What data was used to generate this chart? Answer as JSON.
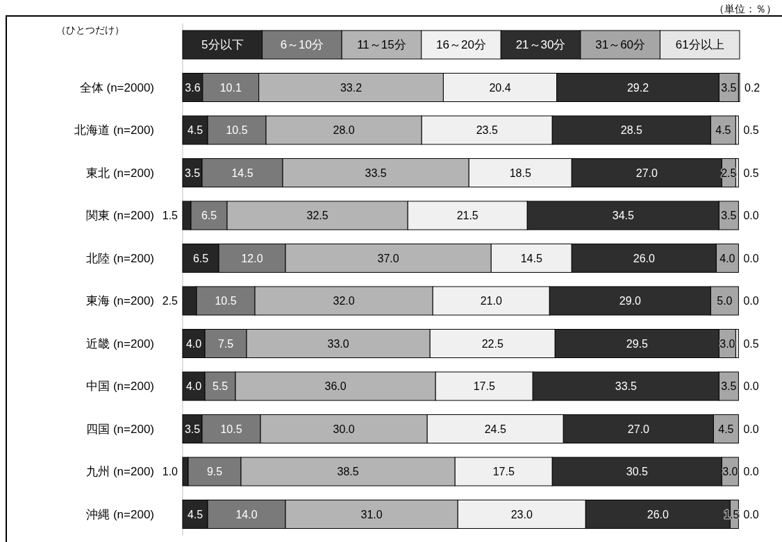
{
  "chart_data": {
    "type": "bar",
    "orientation": "horizontal",
    "stacked": true,
    "legend": "top",
    "tick_labels": "y",
    "xlim": [
      0,
      100.2
    ],
    "categories": [
      "全体 (n=2000)",
      "北海道 (n=200)",
      "東北 (n=200)",
      "関東 (n=200)",
      "北陸 (n=200)",
      "東海 (n=200)",
      "近畿 (n=200)",
      "中国 (n=200)",
      "四国 (n=200)",
      "九州 (n=200)",
      "沖縄 (n=200)"
    ],
    "annotations": [
      "（ひとつだけ）",
      "（単位：％）"
    ],
    "series": [
      {
        "name": "5分以下",
        "color": "#262626",
        "values": [
          3.6,
          4.5,
          3.5,
          1.5,
          6.5,
          2.5,
          4.0,
          4.0,
          3.5,
          1.0,
          4.5
        ],
        "value_labels": [
          "3.6",
          "4.5",
          "3.5",
          "1.5",
          "6.5",
          "2.5",
          "4.0",
          "4.0",
          "3.5",
          "1.0",
          "4.5"
        ]
      },
      {
        "name": "6～10分",
        "color": "#7a7a7a",
        "values": [
          10.1,
          10.5,
          14.5,
          6.5,
          12.0,
          10.5,
          7.5,
          5.5,
          10.5,
          9.5,
          14.0
        ],
        "value_labels": [
          "10.1",
          "10.5",
          "14.5",
          "6.5",
          "12.0",
          "10.5",
          "7.5",
          "5.5",
          "10.5",
          "9.5",
          "14.0"
        ]
      },
      {
        "name": "11～15分",
        "color": "#b4b4b4",
        "values": [
          33.2,
          28.0,
          33.5,
          32.5,
          37.0,
          32.0,
          33.0,
          36.0,
          30.0,
          38.5,
          31.0
        ],
        "value_labels": [
          "33.2",
          "28.0",
          "33.5",
          "32.5",
          "37.0",
          "32.0",
          "33.0",
          "36.0",
          "30.0",
          "38.5",
          "31.0"
        ]
      },
      {
        "name": "16～20分",
        "color": "#f0f0f0",
        "values": [
          20.4,
          23.5,
          18.5,
          21.5,
          14.5,
          21.0,
          22.5,
          17.5,
          24.5,
          17.5,
          23.0
        ],
        "value_labels": [
          "20.4",
          "23.5",
          "18.5",
          "21.5",
          "14.5",
          "21.0",
          "22.5",
          "17.5",
          "24.5",
          "17.5",
          "23.0"
        ]
      },
      {
        "name": "21～30分",
        "color": "#2e2e2e",
        "values": [
          29.2,
          28.5,
          27.0,
          34.5,
          26.0,
          29.0,
          29.5,
          33.5,
          27.0,
          30.5,
          26.0
        ],
        "value_labels": [
          "29.2",
          "28.5",
          "27.0",
          "34.5",
          "26.0",
          "29.0",
          "29.5",
          "33.5",
          "27.0",
          "30.5",
          "26.0"
        ]
      },
      {
        "name": "31～60分",
        "color": "#a6a6a6",
        "values": [
          3.5,
          4.5,
          2.5,
          3.5,
          4.0,
          5.0,
          3.0,
          3.5,
          4.5,
          3.0,
          1.5
        ],
        "value_labels": [
          "3.5",
          "4.5",
          "2.5",
          "3.5",
          "4.0",
          "5.0",
          "3.0",
          "3.5",
          "4.5",
          "3.0",
          "1.5"
        ]
      },
      {
        "name": "61分以上",
        "color": "#e6e6e6",
        "values": [
          0.2,
          0.5,
          0.5,
          0.0,
          0.0,
          0.0,
          0.5,
          0.0,
          0.0,
          0.0,
          0.0
        ],
        "value_labels": [
          "0.2",
          "0.5",
          "0.5",
          "0.0",
          "0.0",
          "0.0",
          "0.5",
          "0.0",
          "0.0",
          "0.0",
          "0.0"
        ]
      }
    ]
  }
}
